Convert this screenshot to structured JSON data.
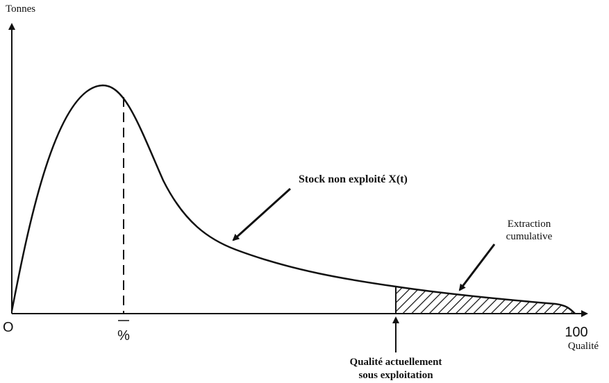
{
  "axes": {
    "y_label": "Tonnes",
    "x_label": "Qualité",
    "origin": "O",
    "x_end": "100",
    "mean_mark": "%"
  },
  "annotations": {
    "stock": "Stock non exploité X(t)",
    "extraction": [
      "Extraction",
      "cumulative"
    ],
    "current": [
      "Qualité actuellement",
      "sous exploitation"
    ]
  }
}
